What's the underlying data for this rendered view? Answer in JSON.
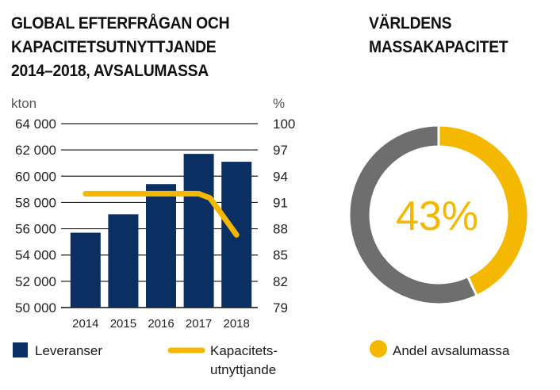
{
  "colors": {
    "bar": "#0b2f63",
    "line": "#f5b800",
    "donut_share": "#f5b800",
    "donut_rest": "#6e6e6e",
    "grid": "#222222"
  },
  "left_title": [
    "GLOBAL EFTERFRÅGAN OCH",
    "KAPACITETSUTNYTTJANDE",
    "2014–2018, AVSALUMASSA"
  ],
  "right_title": [
    "VÄRLDENS",
    "MASSAKAPACITET"
  ],
  "chart_data": [
    {
      "type": "bar",
      "title": "GLOBAL EFTERFRÅGAN OCH KAPACITETSUTNYTTJANDE 2014–2018, AVSALUMASSA",
      "ylabel": "kton",
      "y2label": "%",
      "categories": [
        "2014",
        "2015",
        "2016",
        "2017",
        "2018"
      ],
      "ylim": [
        50000,
        64000
      ],
      "y2lim": [
        79,
        100
      ],
      "yticks": [
        50000,
        52000,
        54000,
        56000,
        58000,
        60000,
        62000,
        64000
      ],
      "ytick_labels": [
        "50 000",
        "52 000",
        "54 000",
        "56 000",
        "58 000",
        "60 000",
        "62 000",
        "64 000"
      ],
      "y2ticks": [
        79,
        82,
        85,
        88,
        91,
        94,
        97,
        100
      ],
      "y2tick_labels": [
        "79",
        "82",
        "85",
        "88",
        "91",
        "94",
        "97",
        "100"
      ],
      "grid": true,
      "series": [
        {
          "name": "Leveranser",
          "type": "bar",
          "axis": "left",
          "values": [
            55700,
            57100,
            59400,
            61700,
            61100
          ]
        },
        {
          "name": "Kapacitets-\nutnyttjande",
          "legend_lines": [
            "Kapacitets-",
            "utnyttjande"
          ],
          "type": "line",
          "axis": "right",
          "x": [
            2014,
            2015,
            2016,
            2017,
            2017.3,
            2018
          ],
          "values": [
            92,
            92,
            92,
            92,
            91.5,
            87.3
          ]
        }
      ],
      "legend": "bottom"
    },
    {
      "type": "pie",
      "title": "VÄRLDENS MASSAKAPACITET",
      "style": "donut",
      "center_label": "43%",
      "slices": [
        {
          "name": "Andel avsalumassa",
          "value": 43
        },
        {
          "name": "",
          "value": 57
        }
      ],
      "legend": "bottom"
    }
  ]
}
